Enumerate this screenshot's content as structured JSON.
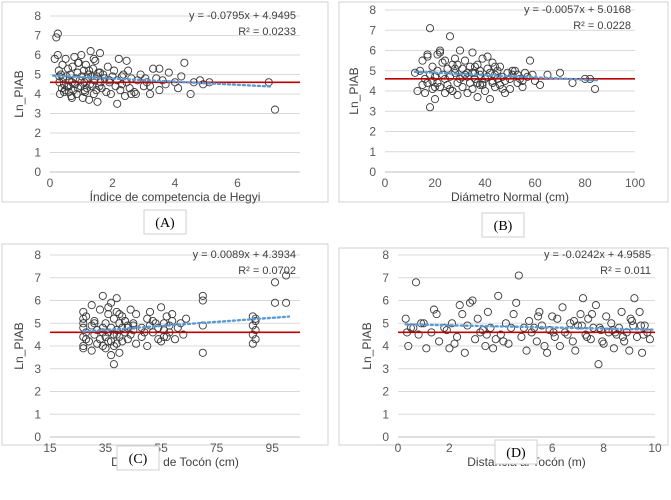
{
  "colors": {
    "points": "#3a3a3a",
    "trend": "#5b9bd5",
    "mean_line": "#c00000",
    "grid": "#d9d9d9",
    "axis": "#bfbfbf"
  },
  "chart_data": [
    {
      "type": "scatter",
      "caption": "(A)",
      "xlabel": "Índice de competencia de Hegyi",
      "ylabel": "Ln_PIAB",
      "equation": "y = -0.0795x + 4.9495",
      "r2": "R² = 0.0233",
      "xlim": [
        0,
        8
      ],
      "ylim": [
        0,
        8
      ],
      "xticks": [
        0,
        2,
        4,
        6
      ],
      "yticks": [
        0,
        1,
        2,
        3,
        4,
        5,
        6,
        7,
        8
      ],
      "mean_y": 4.6,
      "trend": {
        "slope": -0.0795,
        "intercept": 4.9495,
        "x_from": 0.1,
        "x_to": 7.1
      },
      "x": [
        0.15,
        0.2,
        0.25,
        0.28,
        0.3,
        0.32,
        0.35,
        0.38,
        0.4,
        0.42,
        0.45,
        0.48,
        0.5,
        0.52,
        0.55,
        0.58,
        0.6,
        0.62,
        0.65,
        0.68,
        0.7,
        0.72,
        0.75,
        0.78,
        0.8,
        0.82,
        0.85,
        0.88,
        0.9,
        0.92,
        0.95,
        0.98,
        1.0,
        1.02,
        1.05,
        1.08,
        1.1,
        1.12,
        1.15,
        1.18,
        1.2,
        1.22,
        1.25,
        1.28,
        1.3,
        1.32,
        1.35,
        1.38,
        1.4,
        1.42,
        1.45,
        1.48,
        1.5,
        1.52,
        1.55,
        1.58,
        1.6,
        1.62,
        1.65,
        1.7,
        1.75,
        1.8,
        1.85,
        1.9,
        1.95,
        2.0,
        2.05,
        2.1,
        2.15,
        2.2,
        2.25,
        2.3,
        2.35,
        2.4,
        2.45,
        2.5,
        2.55,
        2.6,
        2.7,
        2.8,
        2.9,
        3.0,
        3.1,
        3.2,
        3.3,
        3.4,
        3.5,
        3.6,
        3.7,
        3.8,
        4.0,
        4.1,
        4.2,
        4.3,
        4.5,
        4.6,
        4.8,
        4.9,
        5.1,
        7.0,
        7.2,
        0.25,
        0.3,
        0.6,
        0.9,
        1.1,
        1.4,
        1.6,
        2.3,
        2.6,
        3.2,
        3.5,
        0.45,
        0.7,
        1.25,
        1.9,
        2.15,
        2.45,
        2.75,
        3.05
      ],
      "y": [
        5.8,
        6.9,
        7.1,
        5.2,
        4.6,
        4.0,
        5.0,
        4.3,
        5.5,
        4.8,
        4.5,
        4.2,
        5.8,
        4.9,
        4.4,
        5.3,
        4.1,
        4.7,
        5.0,
        3.9,
        4.6,
        5.4,
        4.2,
        5.9,
        4.5,
        4.8,
        4.0,
        5.1,
        4.3,
        5.6,
        4.7,
        4.4,
        6.0,
        4.9,
        3.8,
        5.2,
        4.6,
        4.1,
        5.5,
        4.3,
        4.8,
        5.0,
        3.7,
        4.5,
        6.2,
        4.9,
        4.4,
        5.3,
        4.0,
        4.7,
        5.7,
        4.2,
        4.9,
        3.6,
        5.1,
        4.4,
        6.1,
        4.6,
        4.3,
        5.0,
        4.8,
        4.1,
        5.4,
        4.6,
        4.0,
        4.9,
        5.2,
        4.4,
        4.7,
        5.8,
        4.2,
        4.5,
        5.0,
        3.9,
        4.6,
        5.2,
        4.3,
        4.8,
        4.1,
        4.7,
        5.0,
        4.4,
        4.6,
        4.0,
        5.3,
        4.8,
        4.2,
        4.7,
        4.5,
        5.1,
        4.6,
        4.3,
        4.9,
        5.6,
        4.0,
        4.6,
        4.7,
        4.5,
        4.6,
        4.6,
        3.2,
        6.0,
        4.9,
        4.4,
        5.6,
        4.2,
        5.8,
        5.1,
        4.9,
        4.0,
        4.4,
        5.3,
        4.1,
        3.8,
        5.2,
        4.7,
        3.5,
        5.7,
        4.0,
        4.8
      ]
    },
    {
      "type": "scatter",
      "caption": "(B)",
      "xlabel": "Diámetro Normal (cm)",
      "ylabel": "Ln_PIAB",
      "equation": "y = -0.0057x + 5.0168",
      "r2": "R² = 0.0228",
      "xlim": [
        0,
        100
      ],
      "ylim": [
        0,
        8
      ],
      "xticks": [
        0,
        20,
        40,
        60,
        80,
        100
      ],
      "yticks": [
        0,
        1,
        2,
        3,
        4,
        5,
        6,
        7,
        8
      ],
      "mean_y": 4.6,
      "trend": {
        "slope": -0.0057,
        "intercept": 5.0168,
        "x_from": 12,
        "x_to": 85
      },
      "x": [
        12,
        13,
        14,
        15,
        15,
        16,
        16,
        17,
        17,
        18,
        18,
        18,
        19,
        19,
        20,
        20,
        21,
        21,
        22,
        22,
        23,
        23,
        24,
        24,
        25,
        25,
        26,
        26,
        27,
        27,
        28,
        28,
        29,
        29,
        30,
        30,
        31,
        31,
        32,
        32,
        33,
        33,
        34,
        34,
        35,
        35,
        36,
        36,
        37,
        37,
        38,
        38,
        39,
        39,
        40,
        40,
        41,
        41,
        42,
        42,
        43,
        43,
        44,
        44,
        45,
        45,
        46,
        46,
        47,
        48,
        49,
        50,
        51,
        52,
        53,
        54,
        55,
        56,
        57,
        58,
        60,
        62,
        65,
        70,
        75,
        80,
        82,
        84,
        17,
        19,
        22,
        27,
        29,
        33,
        37,
        41,
        47,
        51,
        55,
        59,
        20,
        24,
        31,
        35,
        38,
        44,
        50,
        21,
        26,
        36,
        43,
        48,
        53,
        28,
        39
      ],
      "y": [
        4.9,
        4.0,
        5.0,
        4.3,
        5.5,
        4.6,
        3.9,
        5.8,
        4.4,
        7.1,
        4.8,
        3.2,
        5.2,
        4.1,
        4.7,
        3.6,
        5.0,
        4.4,
        5.9,
        4.2,
        4.8,
        5.4,
        3.9,
        4.6,
        5.1,
        4.3,
        6.7,
        4.7,
        5.3,
        4.0,
        4.9,
        5.6,
        4.4,
        3.8,
        6.0,
        4.6,
        5.1,
        4.2,
        4.8,
        5.5,
        3.9,
        4.7,
        5.2,
        4.4,
        5.9,
        4.1,
        4.9,
        4.6,
        5.3,
        3.7,
        4.8,
        5.0,
        4.3,
        5.6,
        4.6,
        4.0,
        5.1,
        4.7,
        3.6,
        4.9,
        5.4,
        4.4,
        4.8,
        4.2,
        5.0,
        4.6,
        4.3,
        5.2,
        4.7,
        4.5,
        4.9,
        4.1,
        4.8,
        5.0,
        4.4,
        4.6,
        4.2,
        4.9,
        4.7,
        5.5,
        4.5,
        4.3,
        4.8,
        4.9,
        4.4,
        4.6,
        4.6,
        4.1,
        5.7,
        4.5,
        6.0,
        4.0,
        5.3,
        4.9,
        4.4,
        5.7,
        4.1,
        5.0,
        4.5,
        4.8,
        4.2,
        5.5,
        4.7,
        4.9,
        4.3,
        5.2,
        4.6,
        5.8,
        4.1,
        5.2,
        4.5,
        3.9,
        4.8,
        5.1,
        4.4
      ]
    },
    {
      "type": "scatter",
      "caption": "(C)",
      "xlabel": "Diametro de Tocón (cm)",
      "ylabel": "Ln_PIAB",
      "equation": "y = 0.0089x + 4.3934",
      "r2": "R² = 0.0702",
      "xlim": [
        15,
        105
      ],
      "ylim": [
        0,
        8
      ],
      "xticks": [
        15,
        35,
        55,
        75,
        95
      ],
      "yticks": [
        0,
        1,
        2,
        3,
        4,
        5,
        6,
        7,
        8
      ],
      "mean_y": 4.6,
      "trend": {
        "slope": 0.0089,
        "intercept": 4.3934,
        "x_from": 27,
        "x_to": 101
      },
      "x": [
        27,
        27,
        27,
        27,
        27,
        27,
        27,
        28,
        28,
        29,
        30,
        30,
        30,
        31,
        31,
        32,
        32,
        33,
        33,
        34,
        34,
        34,
        35,
        35,
        35,
        36,
        36,
        36,
        37,
        37,
        37,
        38,
        38,
        38,
        38,
        39,
        39,
        39,
        39,
        40,
        40,
        40,
        41,
        41,
        41,
        42,
        42,
        43,
        43,
        44,
        44,
        45,
        45,
        46,
        46,
        48,
        48,
        50,
        50,
        51,
        51,
        52,
        52,
        54,
        54,
        55,
        55,
        56,
        56,
        57,
        57,
        58,
        58,
        59,
        60,
        61,
        62,
        63,
        64,
        70,
        70,
        70,
        70,
        88,
        88,
        88,
        88,
        89,
        89,
        89,
        89,
        96,
        96,
        100,
        100,
        28,
        31,
        34,
        37,
        40,
        43,
        49,
        53,
        56,
        59,
        36,
        39,
        42,
        45
      ],
      "y": [
        4.0,
        4.4,
        4.8,
        5.2,
        5.5,
        3.9,
        5.0,
        4.6,
        5.3,
        4.2,
        4.9,
        5.8,
        3.8,
        4.5,
        5.1,
        4.1,
        4.7,
        5.6,
        4.3,
        6.2,
        4.8,
        4.0,
        5.0,
        4.4,
        3.9,
        5.4,
        4.6,
        4.2,
        5.9,
        4.8,
        3.6,
        4.5,
        5.2,
        4.0,
        3.2,
        4.7,
        5.5,
        4.1,
        6.1,
        4.4,
        5.0,
        3.7,
        4.8,
        5.3,
        4.2,
        4.6,
        5.1,
        4.9,
        4.3,
        5.6,
        4.5,
        5.0,
        4.7,
        4.1,
        5.4,
        4.8,
        4.4,
        5.2,
        4.0,
        4.9,
        5.5,
        4.6,
        5.1,
        4.3,
        4.8,
        5.7,
        4.2,
        5.0,
        4.7,
        5.3,
        4.4,
        4.9,
        4.6,
        5.4,
        4.3,
        4.8,
        5.0,
        4.5,
        5.2,
        3.7,
        4.9,
        6.0,
        6.2,
        4.1,
        4.5,
        4.9,
        5.3,
        4.3,
        4.7,
        5.1,
        5.2,
        6.8,
        5.9,
        7.1,
        5.9,
        4.3,
        5.0,
        4.6,
        4.2,
        5.4,
        4.8,
        4.6,
        5.0,
        4.4,
        5.1,
        5.7,
        4.5,
        5.1,
        4.9
      ]
    },
    {
      "type": "scatter",
      "caption": "(D)",
      "xlabel": "Distancia al Tocón (m)",
      "ylabel": "Ln_PIAB",
      "equation": "y = -0.0242x + 4.9585",
      "r2": "R² = 0.011",
      "xlim": [
        0,
        10
      ],
      "ylim": [
        0,
        8
      ],
      "xticks": [
        0,
        2,
        4,
        6,
        8,
        10
      ],
      "yticks": [
        0,
        1,
        2,
        3,
        4,
        5,
        6,
        7,
        8
      ],
      "mean_y": 4.6,
      "trend": {
        "slope": -0.0242,
        "intercept": 4.9585,
        "x_from": 0.3,
        "x_to": 9.9
      },
      "x": [
        0.3,
        0.4,
        0.5,
        0.7,
        0.8,
        0.9,
        1.1,
        1.3,
        1.5,
        1.6,
        1.8,
        2.0,
        2.1,
        2.3,
        2.4,
        2.6,
        2.7,
        2.9,
        3.0,
        3.1,
        3.2,
        3.4,
        3.5,
        3.6,
        3.7,
        3.9,
        4.0,
        4.2,
        4.3,
        4.4,
        4.6,
        4.7,
        4.8,
        5.0,
        5.1,
        5.2,
        5.4,
        5.5,
        5.6,
        5.8,
        5.9,
        6.0,
        6.1,
        6.3,
        6.4,
        6.5,
        6.7,
        6.8,
        6.9,
        7.0,
        7.1,
        7.2,
        7.3,
        7.4,
        7.5,
        7.6,
        7.7,
        7.8,
        7.9,
        8.0,
        8.1,
        8.2,
        8.3,
        8.4,
        8.5,
        8.6,
        8.7,
        8.8,
        8.9,
        9.0,
        9.1,
        9.2,
        9.3,
        9.4,
        9.5,
        9.6,
        9.7,
        9.8,
        0.6,
        1.4,
        2.2,
        2.8,
        3.3,
        3.8,
        4.5,
        5.3,
        5.7,
        6.2,
        6.6,
        7.15,
        7.55,
        7.95,
        8.35,
        8.75,
        9.15,
        9.55,
        0.35,
        1.0,
        1.9,
        2.5,
        3.45,
        4.1,
        4.9,
        5.45,
        6.05,
        6.85,
        7.35,
        7.85,
        8.45,
        9.05,
        9.45
      ],
      "y": [
        5.2,
        4.0,
        4.8,
        6.8,
        4.5,
        5.0,
        3.9,
        4.6,
        5.4,
        4.2,
        4.8,
        3.9,
        5.0,
        4.4,
        5.8,
        3.7,
        4.9,
        6.0,
        4.3,
        5.2,
        4.6,
        4.0,
        5.5,
        4.8,
        3.9,
        6.2,
        4.5,
        5.0,
        4.1,
        4.8,
        5.9,
        7.1,
        4.4,
        3.8,
        5.1,
        4.6,
        4.2,
        5.5,
        4.9,
        3.7,
        4.7,
        5.3,
        4.4,
        4.0,
        5.7,
        4.6,
        5.0,
        4.2,
        3.8,
        4.9,
        5.4,
        6.1,
        4.5,
        5.2,
        4.3,
        4.8,
        5.8,
        3.2,
        4.7,
        4.1,
        5.3,
        4.6,
        5.0,
        3.9,
        4.5,
        4.8,
        5.5,
        4.2,
        4.6,
        3.8,
        5.1,
        6.1,
        4.4,
        5.5,
        3.7,
        4.9,
        4.6,
        4.3,
        4.8,
        5.6,
        4.1,
        5.9,
        4.7,
        4.3,
        5.4,
        4.8,
        4.0,
        5.2,
        4.5,
        4.9,
        5.4,
        4.2,
        4.7,
        4.4,
        4.9,
        4.5,
        4.6,
        5.0,
        4.7,
        5.4,
        4.5,
        4.2,
        4.8,
        5.3,
        4.6,
        5.1,
        4.4,
        4.8,
        4.6,
        5.2,
        4.9
      ]
    }
  ]
}
